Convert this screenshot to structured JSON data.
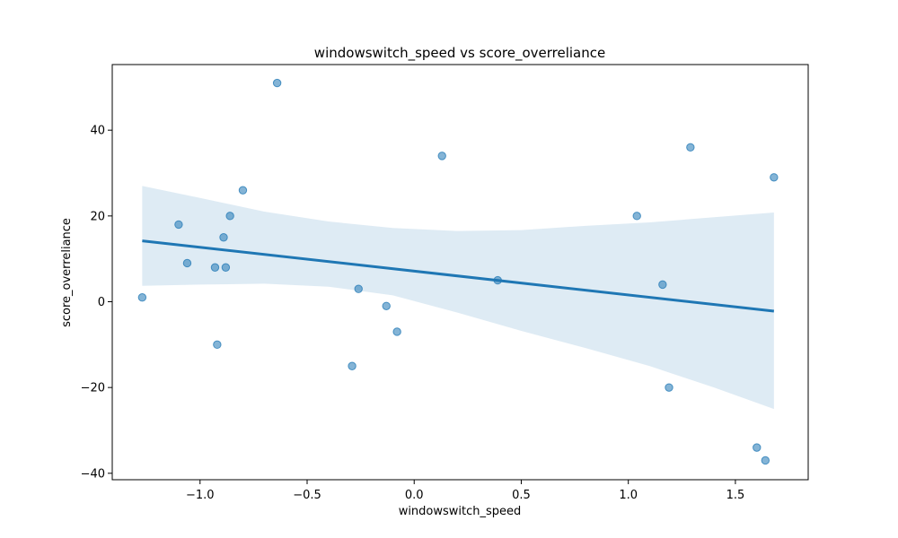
{
  "chart_data": {
    "type": "scatter",
    "title": "windowswitch_speed vs score_overreliance",
    "xlabel": "windowswitch_speed",
    "ylabel": "score_overreliance",
    "xlim": [
      -1.41,
      1.84
    ],
    "ylim": [
      -41.5,
      55.3
    ],
    "xticks": [
      -1.0,
      -0.5,
      0.0,
      0.5,
      1.0,
      1.5
    ],
    "xtick_labels": [
      "−1.0",
      "−0.5",
      "0.0",
      "0.5",
      "1.0",
      "1.5"
    ],
    "yticks": [
      -40,
      -20,
      0,
      20,
      40
    ],
    "ytick_labels": [
      "−40",
      "−20",
      "0",
      "20",
      "40"
    ],
    "grid": false,
    "points": [
      {
        "x": -1.27,
        "y": 1
      },
      {
        "x": -1.1,
        "y": 18
      },
      {
        "x": -1.06,
        "y": 9
      },
      {
        "x": -0.93,
        "y": 8
      },
      {
        "x": -0.92,
        "y": -10
      },
      {
        "x": -0.89,
        "y": 15
      },
      {
        "x": -0.88,
        "y": 8
      },
      {
        "x": -0.86,
        "y": 20
      },
      {
        "x": -0.8,
        "y": 26
      },
      {
        "x": -0.64,
        "y": 51
      },
      {
        "x": -0.29,
        "y": -15
      },
      {
        "x": -0.26,
        "y": 3
      },
      {
        "x": -0.13,
        "y": -1
      },
      {
        "x": -0.08,
        "y": -7
      },
      {
        "x": 0.13,
        "y": 34
      },
      {
        "x": 0.39,
        "y": 5
      },
      {
        "x": 1.04,
        "y": 20
      },
      {
        "x": 1.16,
        "y": 4
      },
      {
        "x": 1.19,
        "y": -20
      },
      {
        "x": 1.29,
        "y": 36
      },
      {
        "x": 1.6,
        "y": -34
      },
      {
        "x": 1.64,
        "y": -37
      },
      {
        "x": 1.68,
        "y": 29
      }
    ],
    "regression": {
      "x": [
        -1.27,
        1.68
      ],
      "y": [
        14.2,
        -2.2
      ]
    },
    "confidence_band": {
      "x": [
        -1.27,
        -1.0,
        -0.7,
        -0.4,
        -0.1,
        0.2,
        0.5,
        0.8,
        1.1,
        1.4,
        1.68
      ],
      "upper": [
        27.0,
        24.2,
        21.0,
        18.7,
        17.2,
        16.5,
        16.7,
        17.7,
        18.5,
        19.7,
        20.8
      ],
      "lower": [
        3.7,
        4.0,
        4.2,
        3.5,
        1.5,
        -2.5,
        -6.8,
        -10.8,
        -15.0,
        -20.0,
        -25.0
      ]
    },
    "colors": {
      "points": "#1f77b4",
      "line": "#1f77b4",
      "band": "#1f77b4"
    }
  }
}
